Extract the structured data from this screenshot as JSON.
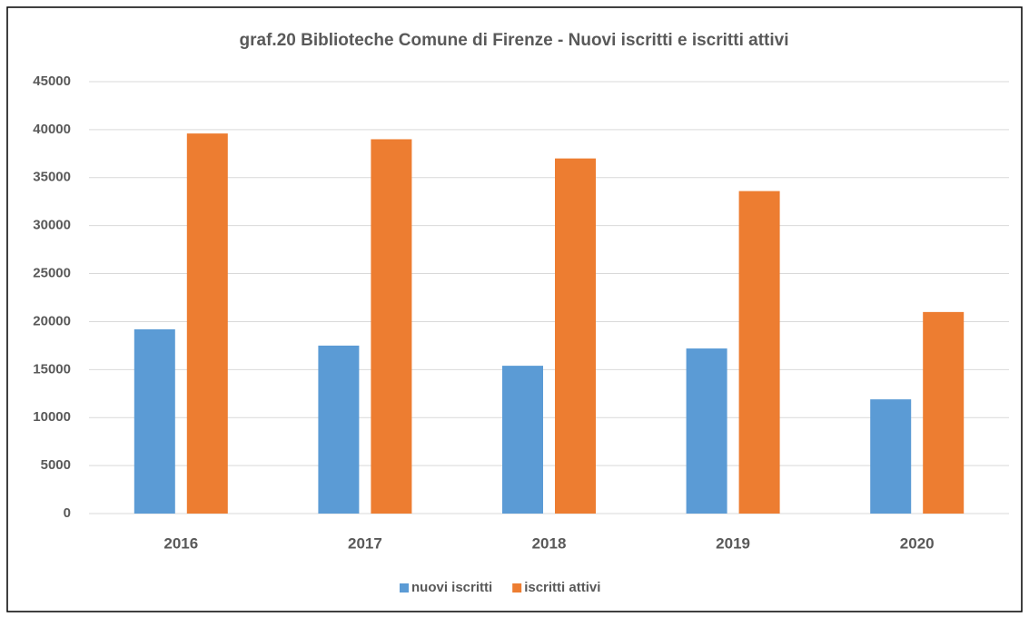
{
  "chart_data": {
    "type": "bar",
    "title": "graf.20   Biblioteche Comune di Firenze - Nuovi iscritti e iscritti attivi",
    "categories": [
      "2016",
      "2017",
      "2018",
      "2019",
      "2020"
    ],
    "series": [
      {
        "name": "nuovi iscritti",
        "color": "#5b9bd5",
        "values": [
          19200,
          17500,
          15400,
          17200,
          11900
        ]
      },
      {
        "name": "iscritti attivi",
        "color": "#ed7d31",
        "values": [
          39600,
          39000,
          37000,
          33600,
          21000
        ]
      }
    ],
    "ylim": [
      0,
      45000
    ],
    "yticks": [
      0,
      5000,
      10000,
      15000,
      20000,
      25000,
      30000,
      35000,
      40000,
      45000
    ],
    "grid": true,
    "legend": "bottom"
  }
}
